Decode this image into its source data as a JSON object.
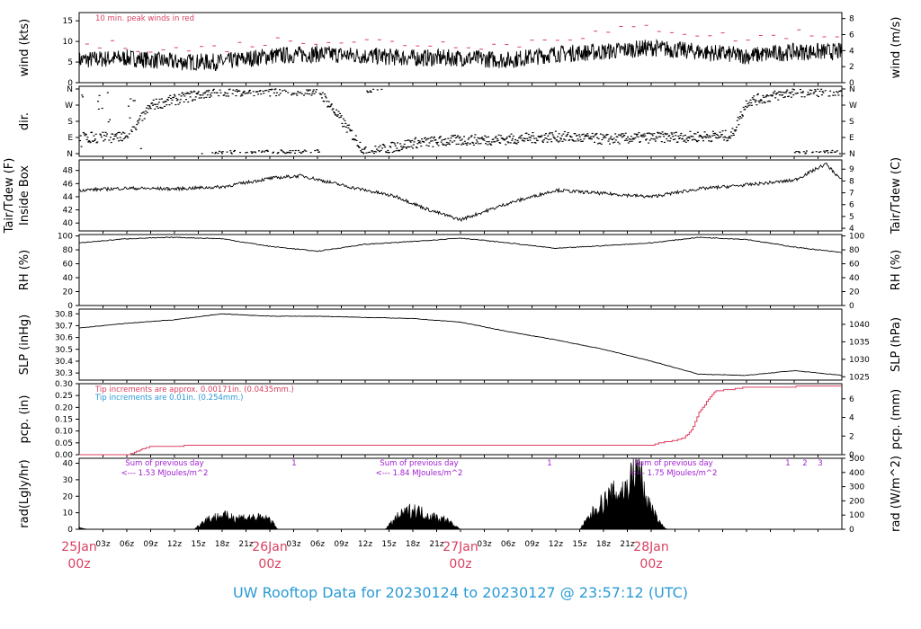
{
  "title": "UW Rooftop Data for 20230124  to  20230127 @ 23:57:12  (UTC)",
  "colors": {
    "peak": "#d94060",
    "tip2": "#2a9ad6",
    "annot": "#a020d0",
    "title": "#2a9ad6",
    "date": "#d94060"
  },
  "time_axis": {
    "hour_labels": [
      "03z",
      "06z",
      "09z",
      "12z",
      "15z",
      "18z",
      "21z"
    ],
    "day_labels": [
      {
        "date": "25Jan",
        "hour": "00z"
      },
      {
        "date": "26Jan",
        "hour": "00z"
      },
      {
        "date": "27Jan",
        "hour": "00z"
      },
      {
        "date": "28Jan",
        "hour": "00z"
      }
    ]
  },
  "chart_data": [
    {
      "type": "line",
      "key": "wind",
      "ylabel": "wind (kts)",
      "ylabel_right": "wind (m/s)",
      "ylim": [
        0,
        17
      ],
      "yticks": [
        0,
        5,
        10,
        15
      ],
      "right_ylim_ms": [
        0,
        8.75
      ],
      "right_ticks": [
        0,
        2,
        4,
        6,
        8
      ],
      "annotation": "10 min. peak winds in red",
      "series": [
        {
          "x_hours": [
            0,
            6,
            12,
            18,
            24,
            30,
            36,
            42,
            48,
            54,
            60,
            66,
            72,
            78,
            84,
            90,
            96
          ],
          "values": [
            5.5,
            6,
            5,
            5,
            6.5,
            7,
            6.5,
            6,
            6,
            5.5,
            7,
            7.5,
            8.5,
            7.5,
            6.5,
            7.5,
            7.5
          ]
        },
        {
          "name": "10 min. peak winds",
          "x_hours": [
            0,
            6,
            12,
            18,
            24,
            30,
            36,
            42,
            48,
            54,
            60,
            66,
            72,
            78,
            84,
            90,
            96
          ],
          "values": [
            9,
            9,
            8,
            8.5,
            10,
            10.5,
            10,
            9.5,
            9.5,
            9,
            11,
            12,
            13.5,
            12,
            10.5,
            12,
            11.5
          ]
        }
      ]
    },
    {
      "type": "scatter",
      "key": "dir",
      "ylabel": "dir.",
      "yticks": [
        "N",
        "E",
        "S",
        "W",
        "N"
      ],
      "series": [
        {
          "x_hours": [
            0,
            3,
            6,
            9,
            12,
            15,
            18,
            24,
            30,
            36,
            42,
            48,
            54,
            60,
            66,
            72,
            78,
            82,
            84,
            90,
            96
          ],
          "values_deg": [
            90,
            90,
            90,
            270,
            300,
            330,
            350,
            350,
            355,
            5,
            60,
            75,
            80,
            95,
            80,
            90,
            95,
            100,
            290,
            345,
            350
          ]
        }
      ]
    },
    {
      "type": "line",
      "key": "temp",
      "ylabel": "Tair/Tdew (F)",
      "ylabel2": "Inside Box",
      "ylabel_right": "Tair/Tdew (C)",
      "ylim": [
        38.8,
        49.6
      ],
      "yticks": [
        40,
        42,
        44,
        46,
        48
      ],
      "right_ticks": [
        4,
        5,
        6,
        7,
        8,
        9
      ],
      "series": [
        {
          "x_hours": [
            0,
            6,
            12,
            18,
            24,
            28,
            34,
            40,
            44,
            48,
            54,
            60,
            66,
            72,
            78,
            84,
            90,
            94,
            96
          ],
          "values": [
            45,
            45.3,
            45.2,
            45.5,
            46.8,
            47.2,
            45.5,
            44,
            42,
            40.5,
            43,
            45,
            44.5,
            44,
            45.2,
            45.8,
            46.5,
            49,
            46.5
          ]
        }
      ]
    },
    {
      "type": "line",
      "key": "rh",
      "ylabel": "RH (%)",
      "ylabel_right": "RH (%)",
      "ylim": [
        0,
        102
      ],
      "yticks": [
        0,
        20,
        40,
        60,
        80,
        100
      ],
      "series": [
        {
          "x_hours": [
            0,
            6,
            12,
            18,
            24,
            30,
            36,
            42,
            48,
            54,
            60,
            66,
            72,
            78,
            84,
            90,
            96
          ],
          "values": [
            90,
            96,
            98,
            96,
            85,
            78,
            88,
            92,
            97,
            90,
            82,
            86,
            90,
            98,
            95,
            84,
            76
          ]
        }
      ]
    },
    {
      "type": "line",
      "key": "slp",
      "ylabel": "SLP (inHg)",
      "ylabel_right": "SLP (hPa)",
      "ylim": [
        30.24,
        30.84
      ],
      "yticks": [
        30.3,
        30.4,
        30.5,
        30.6,
        30.7,
        30.8
      ],
      "right_ticks": [
        1025,
        1030,
        1035,
        1040
      ],
      "series": [
        {
          "x_hours": [
            0,
            6,
            12,
            18,
            24,
            30,
            36,
            42,
            48,
            54,
            60,
            66,
            72,
            78,
            84,
            90,
            96
          ],
          "values": [
            30.68,
            30.72,
            30.75,
            30.8,
            30.78,
            30.78,
            30.77,
            30.76,
            30.73,
            30.65,
            30.58,
            30.5,
            30.4,
            30.29,
            30.28,
            30.32,
            30.28
          ]
        }
      ]
    },
    {
      "type": "area",
      "key": "pcp",
      "ylabel": "pcp. (in)",
      "ylabel_right": "pcp. (mm)",
      "ylim": [
        0,
        0.3
      ],
      "yticks": [
        0,
        0.05,
        0.1,
        0.15,
        0.2,
        0.25,
        0.3
      ],
      "right_ticks": [
        0,
        2,
        4,
        6
      ],
      "notes": [
        "Tip increments are approx. 0.00171in. (0.0435mm.)",
        "Tip increments are 0.01in. (0.254mm.)"
      ],
      "series": [
        {
          "x_hours": [
            0,
            6,
            7,
            8,
            9,
            17,
            40,
            60,
            72,
            73,
            75,
            76,
            77,
            78,
            80,
            82,
            84,
            96
          ],
          "values": [
            0,
            0,
            0.01,
            0.025,
            0.035,
            0.04,
            0.04,
            0.04,
            0.04,
            0.05,
            0.06,
            0.07,
            0.1,
            0.18,
            0.27,
            0.275,
            0.285,
            0.29
          ]
        }
      ]
    },
    {
      "type": "area",
      "key": "rad",
      "ylabel": "rad(Lgly/hr)",
      "ylabel_right": "rad (W/m^2)",
      "ylim": [
        0,
        43
      ],
      "yticks": [
        0,
        10,
        20,
        30,
        40
      ],
      "right_ticks": [
        0,
        100,
        200,
        300,
        400,
        500
      ],
      "day_sums": [
        {
          "text": "Sum of previous day",
          "value": "<--- 1.53 MJoules/m^2"
        },
        {
          "text": "Sum of previous day",
          "value": "<--- 1.84 MJoules/m^2"
        },
        {
          "text": "Sum of previous day",
          "value": "<--- 1.75 MJoules/m^2"
        }
      ],
      "markers": [
        "1",
        "1",
        "1",
        "2",
        "3"
      ],
      "series": [
        {
          "x_hours": [
            0,
            1,
            14.5,
            16,
            18,
            20,
            22,
            24,
            25,
            38.5,
            40,
            42,
            44,
            46,
            48,
            49,
            63,
            65,
            67,
            69,
            70,
            71,
            72,
            73,
            74
          ],
          "values": [
            1,
            0,
            0,
            6,
            8,
            7,
            7,
            6,
            0,
            0,
            7,
            12,
            8,
            6,
            0,
            0,
            0,
            12,
            20,
            24,
            38,
            22,
            12,
            4,
            0
          ]
        }
      ]
    }
  ]
}
